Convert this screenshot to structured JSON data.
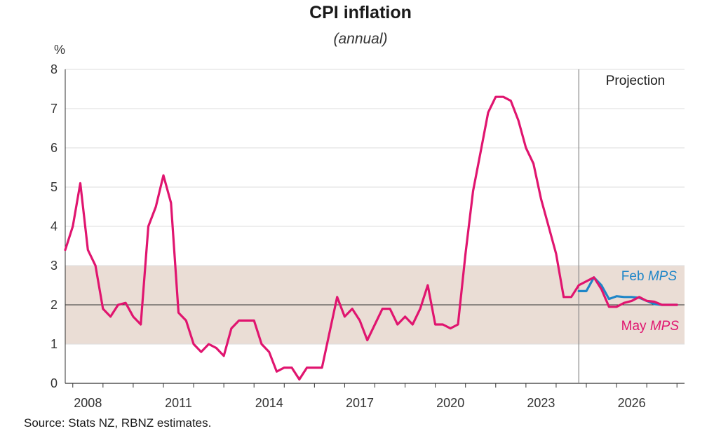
{
  "chart_data": {
    "type": "line",
    "title": "CPI inflation",
    "subtitle": "(annual)",
    "ylabel": "%",
    "ylim": [
      0,
      8
    ],
    "yticks": [
      "0",
      "1",
      "2",
      "3",
      "4",
      "5",
      "6",
      "7",
      "8"
    ],
    "xlim": [
      2007.75,
      2028.25
    ],
    "xticks": [
      "2008",
      "2011",
      "2014",
      "2017",
      "2020",
      "2023",
      "2026"
    ],
    "target_band": [
      1,
      3
    ],
    "target_midpoint": 2,
    "projection_start": 2024.75,
    "projection_label": "Projection",
    "source": "Source: Stats NZ, RBNZ estimates.",
    "colors": {
      "feb": "#1f86c8",
      "may": "#e0156f",
      "band": "#eaddd5",
      "grid": "#dddddd"
    },
    "series": [
      {
        "name": "Feb MPS",
        "label_prefix": "Feb ",
        "label_italic": "MPS",
        "x": [
          2024.75,
          2025.0,
          2025.25,
          2025.5,
          2025.75,
          2026.0,
          2026.25,
          2026.5,
          2026.75,
          2027.0,
          2027.25,
          2027.5,
          2027.75,
          2028.0
        ],
        "values": [
          2.35,
          2.35,
          2.7,
          2.5,
          2.15,
          2.22,
          2.2,
          2.2,
          2.18,
          2.1,
          2.02,
          2.0,
          2.0,
          2.0
        ]
      },
      {
        "name": "May MPS",
        "label_prefix": "May ",
        "label_italic": "MPS",
        "x": [
          2007.75,
          2008.0,
          2008.25,
          2008.5,
          2008.75,
          2009.0,
          2009.25,
          2009.5,
          2009.75,
          2010.0,
          2010.25,
          2010.5,
          2010.75,
          2011.0,
          2011.25,
          2011.5,
          2011.75,
          2012.0,
          2012.25,
          2012.5,
          2012.75,
          2013.0,
          2013.25,
          2013.5,
          2013.75,
          2014.0,
          2014.25,
          2014.5,
          2014.75,
          2015.0,
          2015.25,
          2015.5,
          2015.75,
          2016.0,
          2016.25,
          2016.5,
          2016.75,
          2017.0,
          2017.25,
          2017.5,
          2017.75,
          2018.0,
          2018.25,
          2018.5,
          2018.75,
          2019.0,
          2019.25,
          2019.5,
          2019.75,
          2020.0,
          2020.25,
          2020.5,
          2020.75,
          2021.0,
          2021.25,
          2021.5,
          2021.75,
          2022.0,
          2022.25,
          2022.5,
          2022.75,
          2023.0,
          2023.25,
          2023.5,
          2023.75,
          2024.0,
          2024.25,
          2024.5,
          2024.75,
          2025.0,
          2025.25,
          2025.5,
          2025.75,
          2026.0,
          2026.25,
          2026.5,
          2026.75,
          2027.0,
          2027.25,
          2027.5,
          2027.75,
          2028.0
        ],
        "values": [
          3.4,
          4.0,
          5.1,
          3.4,
          3.0,
          1.9,
          1.7,
          2.0,
          2.05,
          1.7,
          1.5,
          4.0,
          4.5,
          5.3,
          4.6,
          1.8,
          1.6,
          1.0,
          0.8,
          1.0,
          0.9,
          0.7,
          1.4,
          1.6,
          1.6,
          1.6,
          1.0,
          0.8,
          0.3,
          0.4,
          0.4,
          0.1,
          0.4,
          0.4,
          0.4,
          1.3,
          2.2,
          1.7,
          1.9,
          1.6,
          1.1,
          1.5,
          1.9,
          1.9,
          1.5,
          1.7,
          1.5,
          1.9,
          2.5,
          1.5,
          1.5,
          1.4,
          1.5,
          3.3,
          4.9,
          5.9,
          6.9,
          7.3,
          7.3,
          7.2,
          6.7,
          6.0,
          5.6,
          4.7,
          4.0,
          3.3,
          2.2,
          2.2,
          2.5,
          2.6,
          2.7,
          2.4,
          1.95,
          1.95,
          2.05,
          2.1,
          2.2,
          2.1,
          2.08,
          2.0,
          2.0,
          2.0
        ]
      }
    ]
  }
}
